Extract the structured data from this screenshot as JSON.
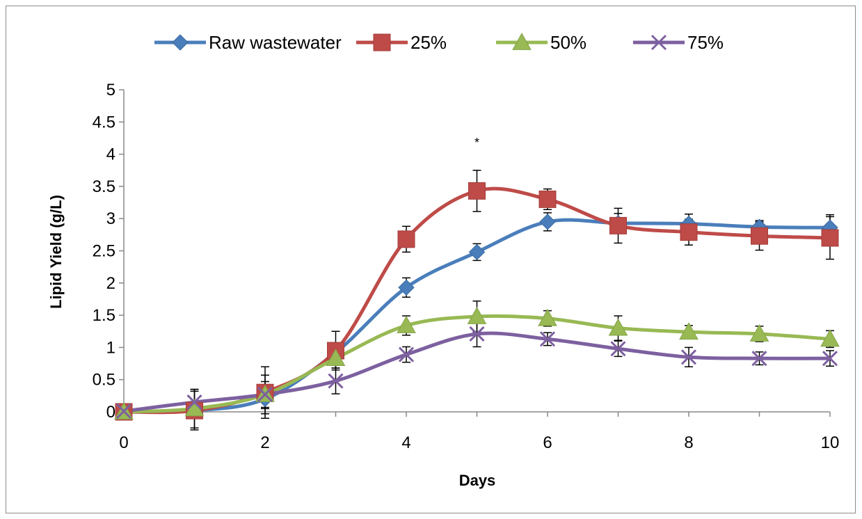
{
  "chart_data": {
    "type": "line",
    "title": "",
    "xlabel": "Days",
    "ylabel": "Lipid Yield (g/L)",
    "xlim": [
      0,
      10
    ],
    "ylim": [
      0,
      5
    ],
    "x_ticks": [
      "0",
      "2",
      "4",
      "6",
      "8",
      "10"
    ],
    "y_ticks": [
      "0",
      "0.5",
      "1",
      "1.5",
      "2",
      "2.5",
      "3",
      "3.5",
      "4",
      "4.5",
      "5"
    ],
    "legend_position": "top",
    "grid": false,
    "smooth": true,
    "annotation": {
      "text": "*",
      "x": 5,
      "y": 4.2
    },
    "series": [
      {
        "name": "Raw wastewater",
        "color": "#4a7ebb",
        "marker": "diamond",
        "x": [
          0,
          1,
          2,
          3,
          4,
          5,
          6,
          7,
          8,
          9,
          10
        ],
        "y": [
          0,
          0.02,
          0.2,
          0.92,
          1.93,
          2.48,
          2.95,
          2.93,
          2.92,
          2.87,
          2.86
        ],
        "error": [
          0,
          0.1,
          0.15,
          0.1,
          0.15,
          0.13,
          0.14,
          0.15,
          0.15,
          0.1,
          0.2
        ]
      },
      {
        "name": "25%",
        "color": "#be4b48",
        "marker": "square",
        "x": [
          0,
          1,
          2,
          3,
          4,
          5,
          6,
          7,
          8,
          9,
          10
        ],
        "y": [
          0,
          0.02,
          0.3,
          0.95,
          2.68,
          3.43,
          3.3,
          2.89,
          2.79,
          2.73,
          2.7
        ],
        "error": [
          0,
          0.3,
          0.4,
          0.3,
          0.2,
          0.32,
          0.16,
          0.27,
          0.2,
          0.22,
          0.33
        ]
      },
      {
        "name": "50%",
        "color": "#98b954",
        "marker": "triangle",
        "x": [
          0,
          1,
          2,
          3,
          4,
          5,
          6,
          7,
          8,
          9,
          10
        ],
        "y": [
          0,
          0.05,
          0.27,
          0.83,
          1.34,
          1.48,
          1.45,
          1.3,
          1.24,
          1.21,
          1.13
        ],
        "error": [
          0,
          0.3,
          0.3,
          0.15,
          0.15,
          0.24,
          0.12,
          0.19,
          0.1,
          0.12,
          0.13
        ]
      },
      {
        "name": "75%",
        "color": "#7d60a0",
        "marker": "x",
        "x": [
          0,
          1,
          2,
          3,
          4,
          5,
          6,
          7,
          8,
          9,
          10
        ],
        "y": [
          0.01,
          0.15,
          0.27,
          0.48,
          0.89,
          1.21,
          1.13,
          0.98,
          0.85,
          0.83,
          0.83
        ],
        "error": [
          0,
          0.2,
          0.2,
          0.2,
          0.12,
          0.2,
          0.1,
          0.12,
          0.15,
          0.1,
          0.12
        ]
      }
    ]
  }
}
